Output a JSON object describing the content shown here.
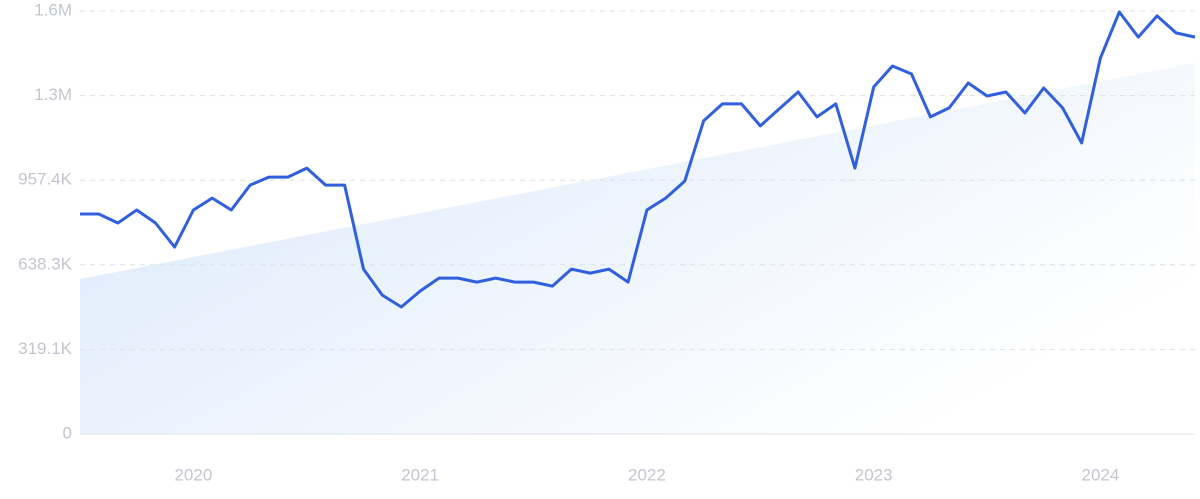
{
  "chart_data": {
    "type": "line",
    "x": [
      2019.5,
      2019.583,
      2019.667,
      2019.75,
      2019.833,
      2019.917,
      2020,
      2020.083,
      2020.167,
      2020.25,
      2020.333,
      2020.417,
      2020.5,
      2020.583,
      2020.667,
      2020.75,
      2020.833,
      2020.917,
      2021,
      2021.083,
      2021.167,
      2021.25,
      2021.333,
      2021.417,
      2021.5,
      2021.583,
      2021.667,
      2021.75,
      2021.833,
      2021.917,
      2022,
      2022.083,
      2022.167,
      2022.25,
      2022.333,
      2022.417,
      2022.5,
      2022.583,
      2022.667,
      2022.75,
      2022.833,
      2022.917,
      2023,
      2023.083,
      2023.167,
      2023.25,
      2023.333,
      2023.417,
      2023.5,
      2023.583,
      2023.667,
      2023.75,
      2023.833,
      2023.917,
      2024,
      2024.083,
      2024.167,
      2024.25,
      2024.333,
      2024.417
    ],
    "series": [
      {
        "color": "#3060df",
        "values": [
          830000,
          830000,
          796000,
          845000,
          796000,
          705000,
          845000,
          890000,
          845000,
          939000,
          969000,
          969000,
          1003000,
          939000,
          939000,
          622000,
          524000,
          479000,
          539000,
          588000,
          588000,
          573000,
          588000,
          573000,
          573000,
          558000,
          622000,
          607000,
          622000,
          573000,
          845000,
          890000,
          954000,
          1181000,
          1245000,
          1245000,
          1162000,
          1226000,
          1290000,
          1196000,
          1245000,
          1003000,
          1309000,
          1388000,
          1358000,
          1196000,
          1230000,
          1324000,
          1275000,
          1290000,
          1211000,
          1305000,
          1230000,
          1098000,
          1418000,
          1592000,
          1497000,
          1577000,
          1513000,
          1497000
        ]
      }
    ],
    "xlim": [
      2019.5,
      2024.417
    ],
    "xticks": [
      2020,
      2021,
      2022,
      2023,
      2024
    ],
    "ylim": [
      0,
      1595600
    ],
    "yticks": [
      0,
      {
        "value": 319100,
        "label": "319.1K"
      },
      {
        "value": 638300,
        "label": "638.3K"
      },
      {
        "value": 957400,
        "label": "957.4K"
      },
      {
        "value": 1276500,
        "label": "1.3M"
      },
      {
        "value": 1595600,
        "label": "1.6M"
      }
    ],
    "grid": true
  }
}
